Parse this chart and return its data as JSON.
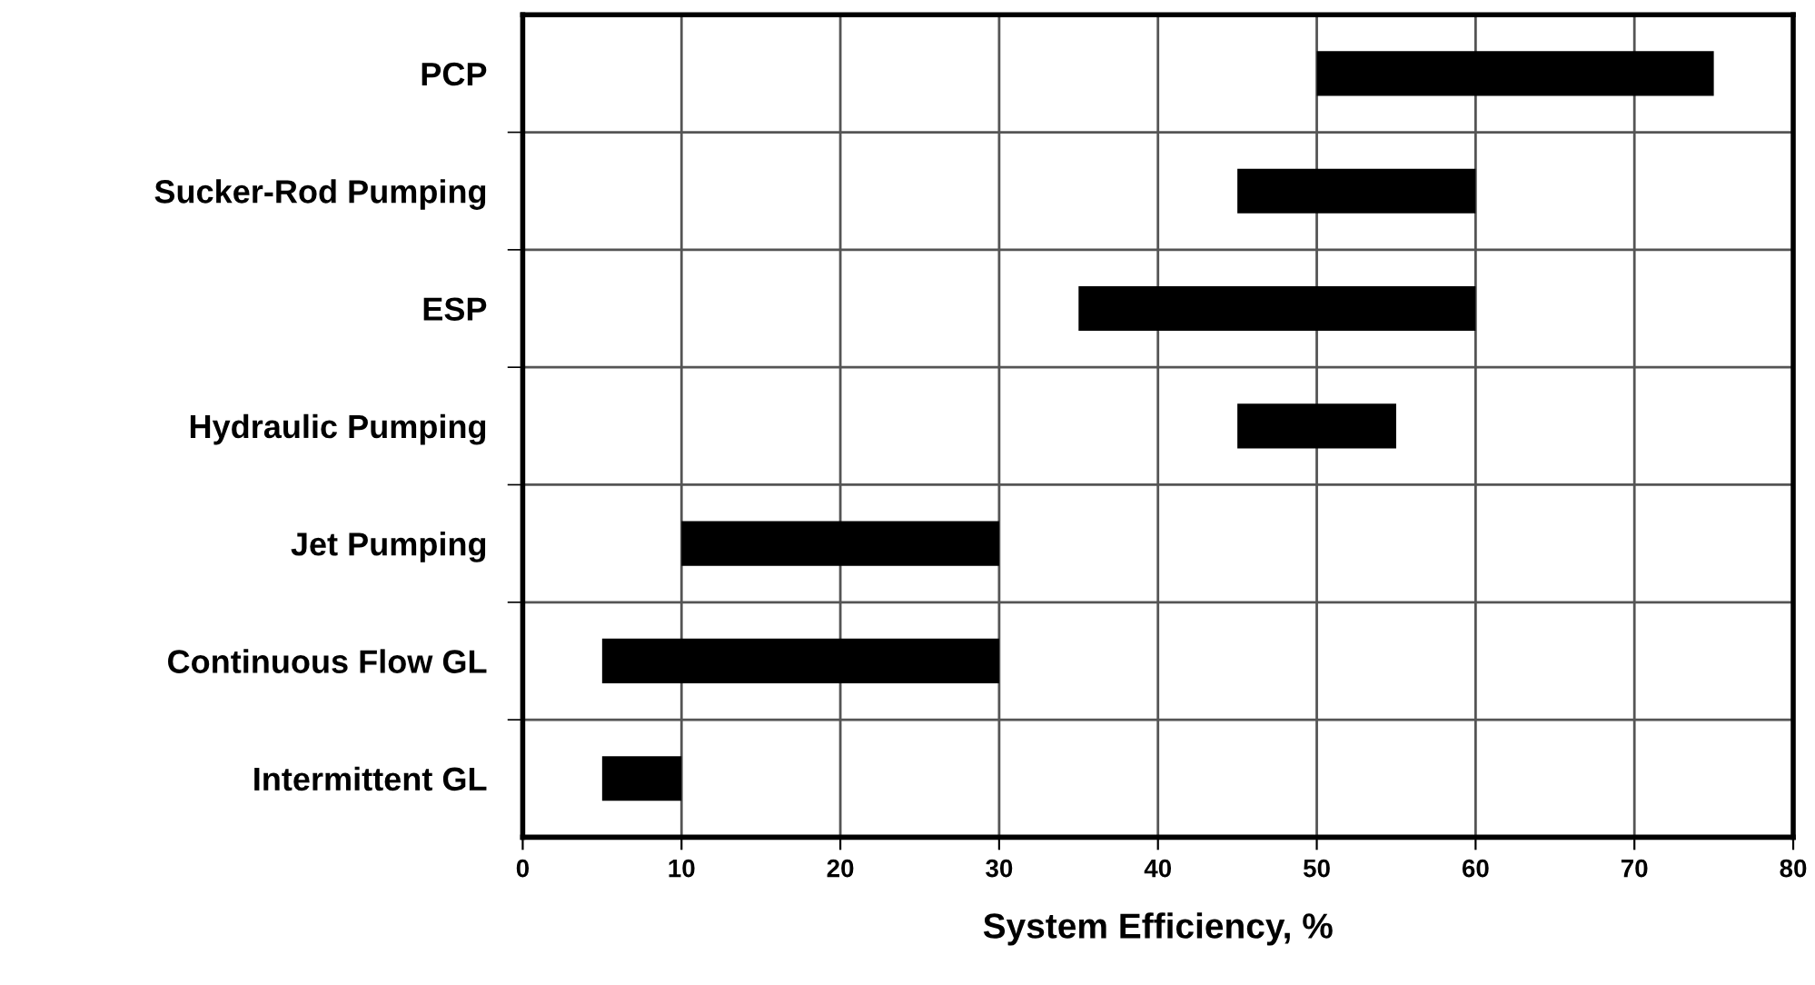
{
  "chart_data": {
    "type": "bar",
    "orientation": "horizontal",
    "xlabel": "System Efficiency, %",
    "categories": [
      "PCP",
      "Sucker-Rod Pumping",
      "ESP",
      "Hydraulic Pumping",
      "Jet Pumping",
      "Continuous Flow GL",
      "Intermittent GL"
    ],
    "base": [
      50,
      45,
      35,
      45,
      10,
      5,
      5
    ],
    "values": [
      25,
      15,
      25,
      10,
      20,
      25,
      5
    ],
    "color": "#000000",
    "xlim": [
      0,
      80
    ],
    "xticks": [
      0,
      10,
      20,
      30,
      40,
      50,
      60,
      70,
      80
    ],
    "grid": true
  }
}
